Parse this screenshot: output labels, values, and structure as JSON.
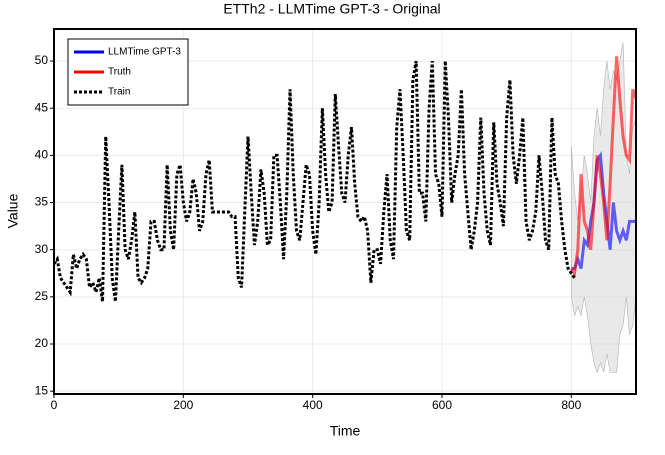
{
  "chart_data": {
    "type": "line",
    "title": "ETTh2 - LLMTime GPT-3 - Original",
    "xlabel": "Time",
    "ylabel": "Value",
    "xlim": [
      0,
      900
    ],
    "ylim": [
      14.7,
      53.4
    ],
    "xticks": [
      0,
      200,
      400,
      600,
      800
    ],
    "yticks": [
      15,
      20,
      25,
      30,
      35,
      40,
      45,
      50
    ],
    "grid": true,
    "legend": "upper left",
    "band": {
      "color": "#d3d3d3",
      "x": [
        800,
        805,
        810,
        815,
        820,
        825,
        830,
        835,
        840,
        845,
        850,
        855,
        860,
        865,
        870,
        875,
        880,
        885,
        890,
        895,
        900
      ],
      "upper": [
        41,
        36,
        33,
        36,
        40,
        38,
        35,
        42,
        45,
        42,
        47,
        50,
        47,
        49,
        48,
        50,
        52,
        40,
        38,
        43,
        44
      ],
      "lower": [
        25,
        23,
        24,
        23,
        25,
        23,
        20,
        18,
        17,
        18,
        17,
        19,
        17,
        17,
        17,
        21,
        22,
        25,
        21,
        22,
        25
      ]
    },
    "series": [
      {
        "name": "LLMTime GPT-3",
        "color": "#0000ff",
        "style": "solid",
        "x": [
          800,
          805,
          810,
          815,
          820,
          825,
          830,
          835,
          840,
          845,
          850,
          855,
          860,
          865,
          870,
          875,
          880,
          885,
          890,
          895,
          900
        ],
        "values": [
          28,
          28,
          29,
          28,
          31,
          30.5,
          33,
          35,
          39.5,
          40,
          36,
          33,
          30,
          35,
          32,
          31,
          32,
          31,
          33,
          33,
          33
        ]
      },
      {
        "name": "Truth",
        "color": "#ff0000",
        "style": "solid",
        "x": [
          800,
          805,
          810,
          815,
          820,
          825,
          830,
          835,
          840,
          845,
          850,
          855,
          860,
          865,
          870,
          875,
          880,
          885,
          890,
          895,
          900
        ],
        "values": [
          28,
          27.5,
          30,
          38,
          33,
          32,
          30,
          35,
          40,
          38,
          35,
          31,
          37,
          44,
          50.5,
          46,
          42,
          40,
          39.5,
          47,
          46
        ]
      },
      {
        "name": "Train",
        "color": "#000000",
        "style": "dotted",
        "x": [
          0,
          5,
          10,
          15,
          20,
          25,
          30,
          35,
          40,
          45,
          50,
          55,
          60,
          65,
          70,
          75,
          80,
          85,
          90,
          95,
          100,
          105,
          110,
          115,
          120,
          125,
          130,
          135,
          140,
          145,
          150,
          155,
          160,
          165,
          170,
          175,
          180,
          185,
          190,
          195,
          200,
          205,
          210,
          215,
          220,
          225,
          230,
          235,
          240,
          245,
          250,
          255,
          260,
          265,
          270,
          275,
          280,
          285,
          290,
          295,
          300,
          305,
          310,
          315,
          320,
          325,
          330,
          335,
          340,
          345,
          350,
          355,
          360,
          365,
          370,
          375,
          380,
          385,
          390,
          395,
          400,
          405,
          410,
          415,
          420,
          425,
          430,
          435,
          440,
          445,
          450,
          455,
          460,
          465,
          470,
          475,
          480,
          485,
          490,
          495,
          500,
          505,
          510,
          515,
          520,
          525,
          530,
          535,
          540,
          545,
          550,
          555,
          560,
          565,
          570,
          575,
          580,
          585,
          590,
          595,
          600,
          605,
          610,
          615,
          620,
          625,
          630,
          635,
          640,
          645,
          650,
          655,
          660,
          665,
          670,
          675,
          680,
          685,
          690,
          695,
          700,
          705,
          710,
          715,
          720,
          725,
          730,
          735,
          740,
          745,
          750,
          755,
          760,
          765,
          770,
          775,
          780,
          785,
          790,
          795,
          800,
          805
        ],
        "values": [
          28.5,
          29,
          27,
          26.5,
          26,
          25.5,
          29.5,
          28,
          29,
          29.5,
          29,
          26,
          26.5,
          25.5,
          27,
          24.5,
          42,
          35,
          27,
          24.5,
          32,
          39,
          30,
          29,
          31,
          34,
          27,
          26.5,
          27,
          28,
          33,
          33,
          31,
          30,
          30,
          39,
          32,
          30,
          38,
          39,
          35,
          33,
          34,
          37.5,
          36,
          32,
          33,
          38,
          39.5,
          34,
          34,
          34,
          34,
          34,
          34,
          33.5,
          33.5,
          27,
          26,
          34,
          42,
          36,
          30.5,
          33,
          38.5,
          36,
          30.5,
          31,
          40,
          40,
          35,
          29,
          36,
          47,
          38,
          32,
          31,
          35,
          39,
          38,
          32,
          29.5,
          35,
          45,
          38,
          34,
          35,
          46.5,
          41,
          36,
          35,
          40,
          43,
          37,
          33.5,
          33,
          33.5,
          32,
          26.5,
          30,
          30,
          28.5,
          34,
          38,
          31,
          29,
          43,
          47,
          40,
          32,
          31,
          48,
          50,
          36,
          36,
          33,
          45,
          50,
          38,
          37,
          33.5,
          50,
          44,
          35,
          38,
          40,
          47,
          38,
          34,
          30,
          32,
          35,
          44,
          36,
          32,
          30.5,
          43.5,
          37,
          35,
          32.5,
          44,
          48,
          40,
          37,
          40,
          44,
          33,
          31,
          32,
          34,
          40,
          36,
          31,
          30,
          44,
          38,
          37,
          33,
          30,
          28,
          27.5,
          27
        ]
      }
    ]
  }
}
